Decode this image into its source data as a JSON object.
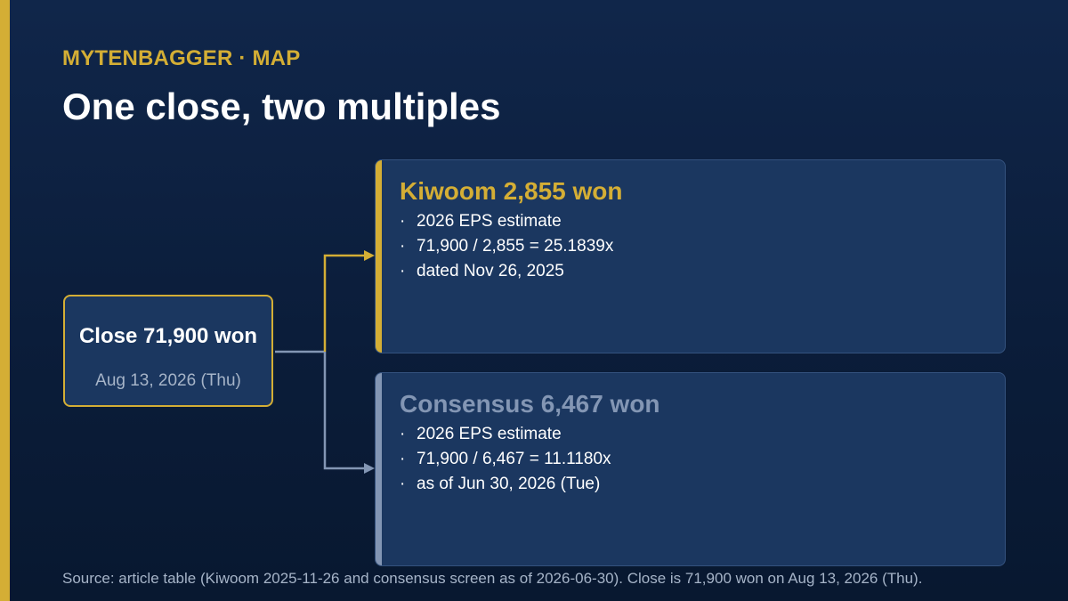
{
  "brand": "MYTENBAGGER · MAP",
  "title": "One close, two multiples",
  "close": {
    "title": "Close 71,900 won",
    "date": "Aug 13, 2026 (Thu)"
  },
  "cards": [
    {
      "title": "Kiwoom 2,855 won",
      "bullets": [
        "2026 EPS estimate",
        "71,900 / 2,855 = 25.1839x",
        "dated Nov 26, 2025"
      ]
    },
    {
      "title": "Consensus 6,467 won",
      "bullets": [
        "2026 EPS estimate",
        "71,900 / 6,467 = 11.1180x",
        "as of Jun 30, 2026 (Tue)"
      ]
    }
  ],
  "bullet_marker": "·",
  "source": "Source: article table (Kiwoom 2025-11-26 and consensus screen as of 2026-06-30). Close is 71,900 won on Aug 13, 2026 (Thu).",
  "colors": {
    "accent": "#d4ae35",
    "muted": "#8396b4",
    "card_bg": "#1b3760",
    "page_bg": "#0b1d3a"
  }
}
